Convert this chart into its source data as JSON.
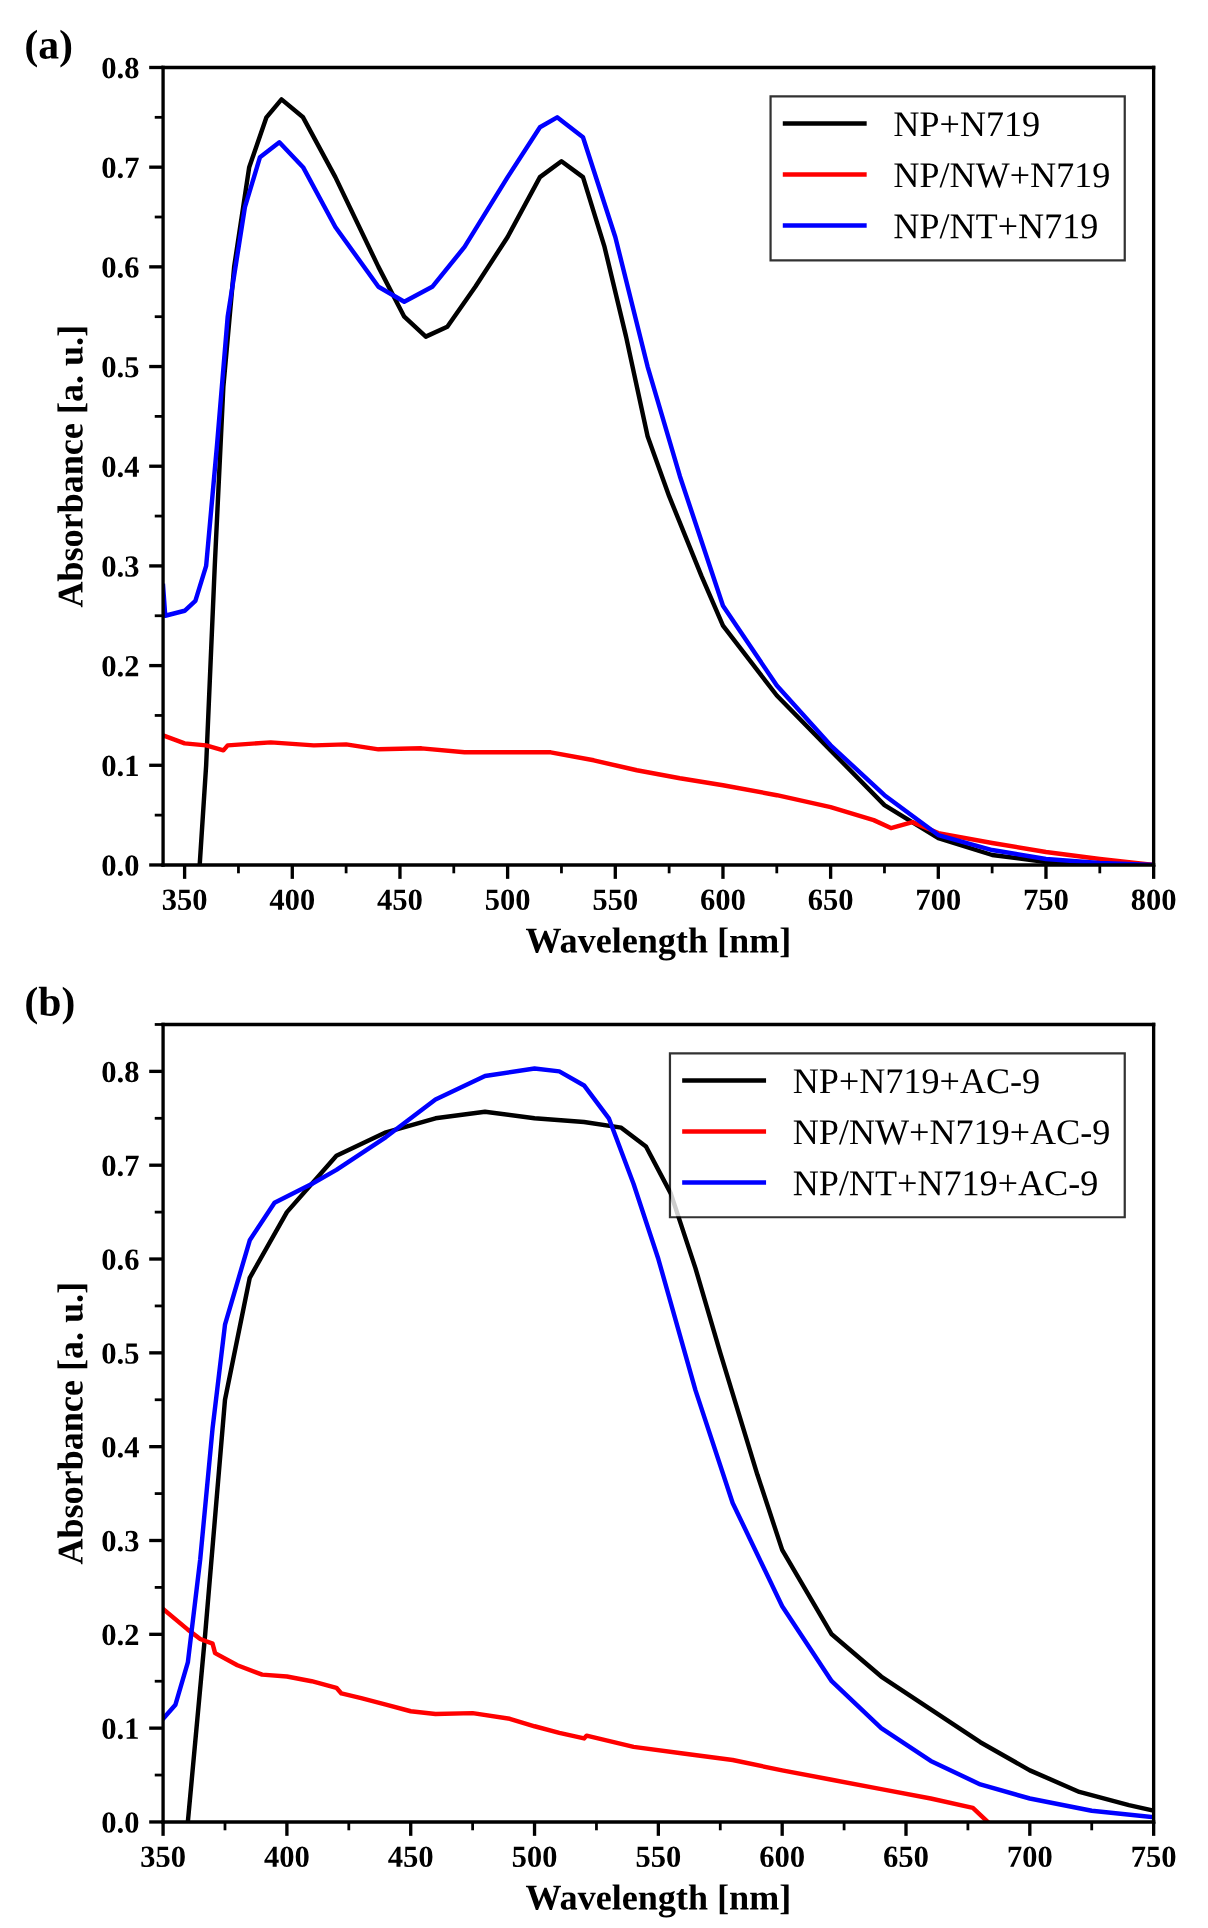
{
  "chart_data": [
    {
      "type": "line",
      "title": "(a)",
      "xlabel": "Wavelength [nm]",
      "ylabel": "Absorbance [a. u.]",
      "xlim": [
        340,
        800
      ],
      "xticks": [
        350,
        400,
        450,
        500,
        550,
        600,
        650,
        700,
        750,
        800
      ],
      "ylim": [
        0,
        0.8
      ],
      "yticks": [
        {
          "value": 0,
          "label": "0.0"
        },
        0.1,
        0.2,
        0.3,
        0.4,
        0.5,
        0.6,
        0.7,
        0.8
      ],
      "grid": false,
      "legend": "top right",
      "line_style": "solid",
      "marker": "none",
      "series": [
        {
          "name": "NP+N719",
          "color": "#000000",
          "x": [
            357,
            360,
            364,
            368,
            373,
            380,
            388,
            395,
            405,
            420,
            440,
            452,
            462,
            472,
            485,
            500,
            515,
            525,
            535,
            545,
            555,
            565,
            575,
            590,
            600,
            625,
            650,
            675,
            700,
            725,
            750,
            775,
            800
          ],
          "values": [
            0.0,
            0.1,
            0.3,
            0.48,
            0.6,
            0.7,
            0.75,
            0.768,
            0.75,
            0.69,
            0.6,
            0.55,
            0.53,
            0.54,
            0.58,
            0.63,
            0.69,
            0.706,
            0.69,
            0.62,
            0.53,
            0.43,
            0.37,
            0.29,
            0.24,
            0.17,
            0.115,
            0.06,
            0.027,
            0.01,
            0.003,
            0.0,
            0.0
          ]
        },
        {
          "name": "NP/NW+N719",
          "color": "#ff0000",
          "x": [
            340,
            350,
            360,
            368,
            370,
            390,
            410,
            425,
            440,
            460,
            480,
            500,
            520,
            540,
            560,
            580,
            600,
            625,
            650,
            670,
            678,
            688,
            700,
            725,
            750,
            775,
            800
          ],
          "values": [
            0.13,
            0.122,
            0.12,
            0.115,
            0.12,
            0.123,
            0.12,
            0.121,
            0.116,
            0.117,
            0.113,
            0.113,
            0.113,
            0.105,
            0.095,
            0.087,
            0.08,
            0.07,
            0.058,
            0.045,
            0.037,
            0.043,
            0.032,
            0.022,
            0.013,
            0.006,
            0.0
          ]
        },
        {
          "name": "NP/NT+N719",
          "color": "#0000ff",
          "x": [
            340,
            341,
            350,
            355,
            360,
            365,
            370,
            378,
            385,
            394,
            405,
            420,
            440,
            452,
            465,
            480,
            500,
            515,
            523,
            535,
            550,
            565,
            580,
            600,
            625,
            650,
            675,
            700,
            725,
            750,
            775,
            800
          ],
          "values": [
            0.28,
            0.25,
            0.255,
            0.265,
            0.3,
            0.42,
            0.55,
            0.66,
            0.71,
            0.725,
            0.7,
            0.64,
            0.58,
            0.565,
            0.58,
            0.62,
            0.69,
            0.74,
            0.75,
            0.73,
            0.63,
            0.5,
            0.39,
            0.26,
            0.18,
            0.12,
            0.07,
            0.03,
            0.015,
            0.006,
            0.002,
            0.0
          ]
        }
      ]
    },
    {
      "type": "line",
      "title": "(b)",
      "xlabel": "Wavelength [nm]",
      "ylabel": "Absorbance [a. u.]",
      "xlim": [
        350,
        750
      ],
      "xticks": [
        350,
        400,
        450,
        500,
        550,
        600,
        650,
        700,
        750
      ],
      "ylim": [
        0,
        0.85
      ],
      "yticks": [
        {
          "value": 0,
          "label": "0.0"
        },
        0.1,
        0.2,
        0.3,
        0.4,
        0.5,
        0.6,
        0.7,
        0.8
      ],
      "grid": false,
      "legend": "top right",
      "line_style": "solid",
      "marker": "none",
      "series": [
        {
          "name": "NP+N719+AC-9",
          "color": "#000000",
          "x": [
            360,
            367,
            375,
            385,
            400,
            420,
            440,
            460,
            480,
            500,
            520,
            535,
            545,
            555,
            565,
            575,
            590,
            600,
            620,
            640,
            660,
            680,
            700,
            720,
            740,
            750
          ],
          "values": [
            0.0,
            0.2,
            0.45,
            0.58,
            0.65,
            0.71,
            0.735,
            0.75,
            0.757,
            0.75,
            0.746,
            0.74,
            0.72,
            0.67,
            0.59,
            0.5,
            0.37,
            0.29,
            0.2,
            0.155,
            0.12,
            0.085,
            0.055,
            0.032,
            0.018,
            0.012
          ]
        },
        {
          "name": "NP/NW+N719+AC-9",
          "color": "#ff0000",
          "x": [
            350,
            360,
            365,
            370,
            371,
            380,
            390,
            400,
            410,
            420,
            422,
            430,
            440,
            450,
            460,
            475,
            490,
            500,
            510,
            520,
            521,
            540,
            560,
            580,
            600,
            620,
            640,
            660,
            677,
            683
          ],
          "values": [
            0.227,
            0.205,
            0.195,
            0.19,
            0.18,
            0.167,
            0.157,
            0.155,
            0.15,
            0.143,
            0.137,
            0.132,
            0.125,
            0.118,
            0.115,
            0.116,
            0.11,
            0.102,
            0.095,
            0.089,
            0.092,
            0.08,
            0.073,
            0.066,
            0.055,
            0.045,
            0.035,
            0.025,
            0.015,
            0.0
          ]
        },
        {
          "name": "NP/NT+N719+AC-9",
          "color": "#0000ff",
          "x": [
            350,
            355,
            360,
            365,
            370,
            375,
            385,
            395,
            410,
            420,
            440,
            460,
            480,
            500,
            510,
            520,
            530,
            540,
            550,
            565,
            580,
            600,
            620,
            640,
            660,
            680,
            700,
            725,
            750
          ],
          "values": [
            0.11,
            0.125,
            0.17,
            0.28,
            0.42,
            0.53,
            0.62,
            0.66,
            0.68,
            0.695,
            0.73,
            0.77,
            0.795,
            0.803,
            0.8,
            0.785,
            0.75,
            0.68,
            0.6,
            0.46,
            0.34,
            0.23,
            0.15,
            0.1,
            0.065,
            0.04,
            0.025,
            0.012,
            0.005
          ]
        }
      ]
    }
  ]
}
